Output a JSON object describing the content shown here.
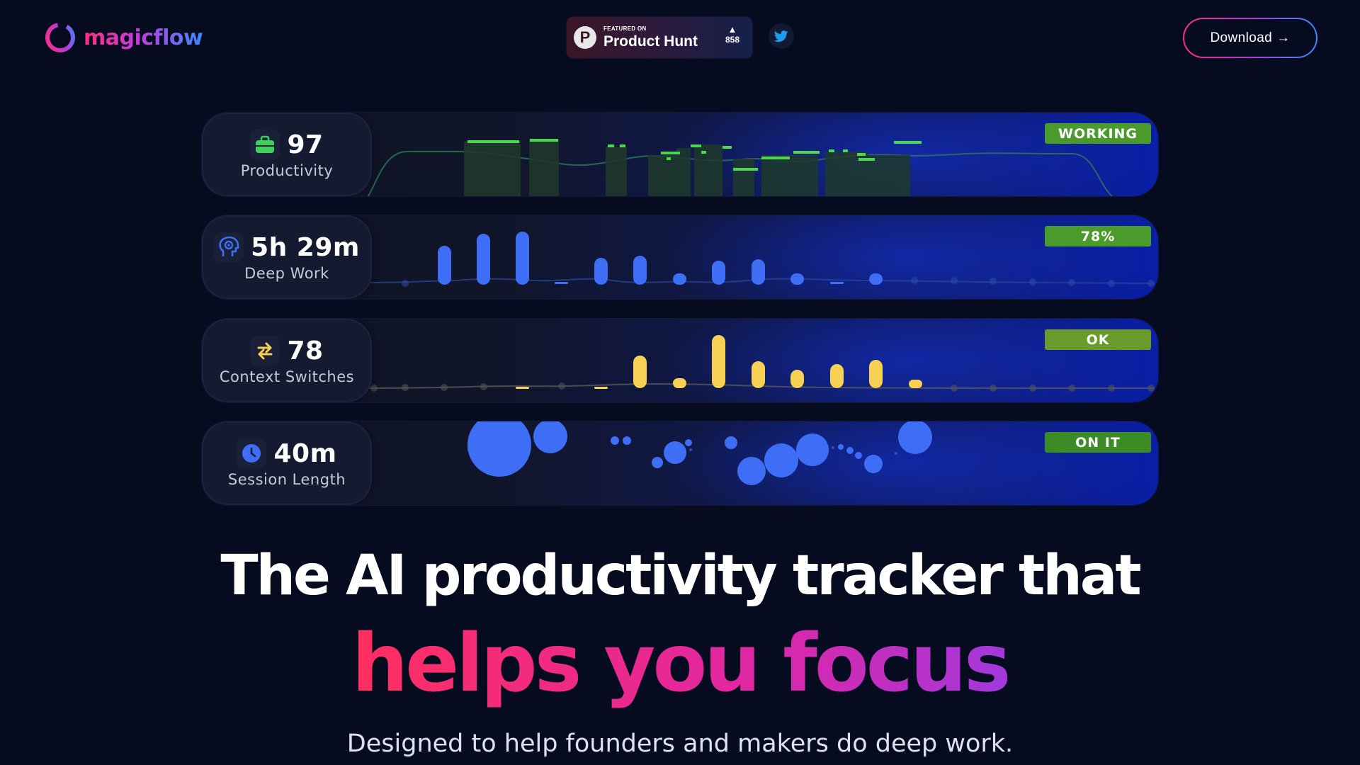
{
  "header": {
    "logo_text": "magicflow",
    "product_hunt": {
      "featured": "FEATURED ON",
      "name": "Product Hunt",
      "votes": "858",
      "icon": "P"
    },
    "twitter_icon": "twitter-icon",
    "download_label": "Download",
    "download_icon": "→"
  },
  "cards": [
    {
      "value": "97",
      "name": "Productivity",
      "status": "WORKING",
      "icon": "briefcase-icon",
      "accent": "#3ed05a",
      "status_bg": "#4a9a2c",
      "bars": [
        [
          130,
          170,
          2
        ],
        [
          170,
          210,
          2
        ],
        [
          265,
          275,
          1
        ],
        [
          285,
          295,
          1
        ],
        [
          330,
          355,
          7
        ],
        [
          375,
          390,
          6
        ],
        [
          410,
          440,
          36
        ],
        [
          465,
          500,
          8
        ],
        [
          520,
          550,
          35
        ],
        [
          560,
          565,
          20
        ],
        [
          575,
          590,
          3
        ],
        [
          600,
          630,
          10
        ]
      ]
    },
    {
      "value": "5h 29m",
      "name": "Deep Work",
      "status": "78%",
      "icon": "head-icon",
      "accent": "#3d6ef5",
      "status_bg": "#4a9a2c"
    },
    {
      "value": "78",
      "name": "Context Switches",
      "status": "OK",
      "icon": "swap-icon",
      "accent": "#f7d154",
      "status_bg": "#6a9a2c"
    },
    {
      "value": "40m",
      "name": "Session Length",
      "status": "ON IT",
      "icon": "clock-icon",
      "accent": "#3d6ef5",
      "status_bg": "#3c8c25"
    }
  ],
  "hero": {
    "line1": "The AI productivity tracker that",
    "line2": "helps you focus"
  },
  "subtitle": "Designed to help founders and makers do deep work.",
  "colors": {
    "background": "#070b1f",
    "brand_pink": "#ff2f7e",
    "brand_blue": "#3a8bff"
  }
}
